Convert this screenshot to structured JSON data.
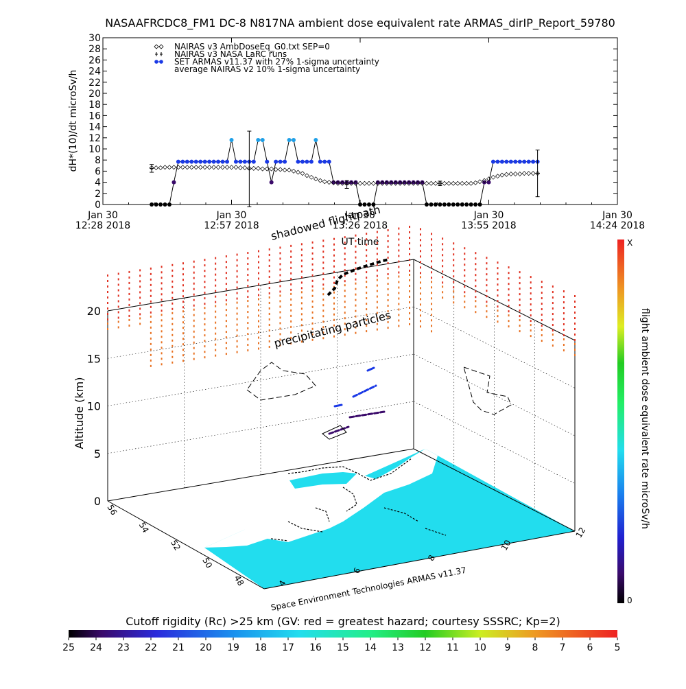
{
  "title": "NASAAFRCDC8_FM1 DC-8   N817NA ambient dose equivalent rate ARMAS_dirIP_Report_59780",
  "chart_data": [
    {
      "type": "line",
      "ylabel": "dH*(10)/dt microSv/h",
      "xlabel": "UT time",
      "ylim": [
        0,
        30
      ],
      "yticks": [
        "0",
        "2",
        "4",
        "6",
        "8",
        "10",
        "12",
        "14",
        "16",
        "18",
        "20",
        "22",
        "24",
        "26",
        "28",
        "30"
      ],
      "xlim": [
        0,
        116
      ],
      "xticks": [
        {
          "x": 0,
          "line1": "Jan 30",
          "line2": "12:28 2018"
        },
        {
          "x": 29,
          "line1": "Jan 30",
          "line2": "12:57 2018"
        },
        {
          "x": 58,
          "line1": "Jan 30",
          "line2": "13:26 2018"
        },
        {
          "x": 87,
          "line1": "Jan 30",
          "line2": "13:55 2018"
        },
        {
          "x": 116,
          "line1": "Jan 30",
          "line2": "14:24 2018"
        }
      ],
      "legend_position": "top-left",
      "legend": [
        {
          "symbol": "diamond",
          "label": "NAIRAS v3 AmbDoseEq_G0.txt SEP=0"
        },
        {
          "symbol": "plus",
          "label": "NAIRAS v3 NASA LaRC runs"
        },
        {
          "symbol": "dot",
          "label": "SET ARMAS v11.37 with 27% 1-sigma uncertainty"
        },
        {
          "symbol": "none",
          "label": "average NAIRAS v2 10% 1-sigma uncertainty"
        }
      ],
      "series": [
        {
          "name": "SET ARMAS v11.37 with 27% 1-sigma uncertainty",
          "x": [
            11,
            12,
            13,
            14,
            15,
            16,
            17,
            18,
            19,
            20,
            21,
            22,
            23,
            24,
            25,
            26,
            27,
            28,
            29,
            30,
            31,
            32,
            33,
            34,
            35,
            36,
            37,
            38,
            39,
            40,
            41,
            42,
            43,
            44,
            45,
            46,
            47,
            48,
            49,
            50,
            51,
            52,
            53,
            54,
            55,
            56,
            57,
            58,
            59,
            60,
            61,
            62,
            63,
            64,
            65,
            66,
            67,
            68,
            69,
            70,
            71,
            72,
            73,
            74,
            75,
            76,
            77,
            78,
            79,
            80,
            81,
            82,
            83,
            84,
            85,
            86,
            87,
            88,
            89,
            90,
            91,
            92,
            93,
            94,
            95,
            96,
            97,
            98
          ],
          "y": [
            0,
            0,
            0,
            0,
            0,
            4,
            7.7,
            7.7,
            7.7,
            7.7,
            7.7,
            7.7,
            7.7,
            7.7,
            7.7,
            7.7,
            7.7,
            7.7,
            11.6,
            7.7,
            7.7,
            7.7,
            7.7,
            7.7,
            11.6,
            11.6,
            7.7,
            4,
            7.7,
            7.7,
            7.7,
            11.6,
            11.6,
            7.7,
            7.7,
            7.7,
            7.7,
            11.6,
            7.7,
            7.7,
            7.7,
            4,
            4,
            4,
            4,
            4,
            4,
            0,
            0,
            0,
            0,
            4,
            4,
            4,
            4,
            4,
            4,
            4,
            4,
            4,
            4,
            4,
            0,
            0,
            0,
            0,
            0,
            0,
            0,
            0,
            0,
            0,
            0,
            0,
            0,
            4,
            4,
            7.7,
            7.7,
            7.7,
            7.7,
            7.7,
            7.7,
            7.7,
            7.7,
            7.7,
            7.7,
            7.7
          ]
        },
        {
          "name": "NAIRAS v3 AmbDoseEq_G0.txt SEP=0",
          "x": [
            11,
            12,
            13,
            14,
            15,
            16,
            17,
            18,
            19,
            20,
            21,
            22,
            23,
            24,
            25,
            26,
            27,
            28,
            29,
            30,
            31,
            32,
            33,
            34,
            35,
            36,
            37,
            38,
            39,
            40,
            41,
            42,
            43,
            44,
            45,
            46,
            47,
            48,
            49,
            50,
            51,
            52,
            53,
            54,
            55,
            56,
            57,
            58,
            59,
            60,
            61,
            62,
            63,
            64,
            65,
            66,
            67,
            68,
            69,
            70,
            71,
            72,
            73,
            74,
            75,
            76,
            77,
            78,
            79,
            80,
            81,
            82,
            83,
            84,
            85,
            86,
            87,
            88,
            89,
            90,
            91,
            92,
            93,
            94,
            95,
            96,
            97,
            98
          ],
          "y": [
            6.6,
            6.6,
            6.6,
            6.7,
            6.7,
            6.7,
            6.7,
            6.7,
            6.7,
            6.7,
            6.7,
            6.7,
            6.7,
            6.7,
            6.7,
            6.7,
            6.7,
            6.7,
            6.7,
            6.7,
            6.6,
            6.6,
            6.5,
            6.5,
            6.5,
            6.4,
            6.4,
            6.4,
            6.3,
            6.3,
            6.2,
            6.2,
            6.0,
            5.8,
            5.6,
            5.2,
            4.9,
            4.6,
            4.3,
            4.1,
            4.0,
            3.9,
            3.8,
            3.8,
            3.8,
            3.8,
            3.8,
            3.8,
            3.8,
            3.8,
            3.8,
            3.8,
            3.8,
            3.8,
            3.8,
            3.8,
            3.8,
            3.8,
            3.8,
            3.8,
            3.8,
            3.8,
            3.8,
            3.8,
            3.8,
            3.8,
            3.8,
            3.8,
            3.8,
            3.8,
            3.8,
            3.8,
            3.8,
            3.9,
            4.1,
            4.3,
            4.6,
            4.9,
            5.1,
            5.3,
            5.4,
            5.5,
            5.5,
            5.5,
            5.6,
            5.6,
            5.6,
            5.6
          ]
        },
        {
          "name": "NAIRAS v3 NASA LaRC runs",
          "x": [
            11,
            33,
            55,
            76,
            98
          ],
          "y": [
            6.5,
            6.4,
            3.6,
            3.8,
            5.6
          ],
          "err": [
            0.7,
            6.8,
            0.7,
            0.4,
            4.2
          ]
        }
      ]
    },
    {
      "type": "heatmap",
      "ylabel": "Altitude (km)",
      "zticks": [
        "0",
        "5",
        "10",
        "15",
        "20"
      ],
      "lat_ticks": [
        "48",
        "50",
        "52",
        "54",
        "56"
      ],
      "lon_ticks": [
        "4",
        "6",
        "8",
        "10",
        "12"
      ],
      "colorbar_label": "flight ambient dose equivalent rate microSv/h",
      "colorbar_top": "X",
      "colorbar_bottom": "0"
    },
    {
      "type": "heatmap",
      "title": "Cutoff rigidity (Rc) >25 km (GV: red = greatest hazard; courtesy SSSRC; Kp=2)",
      "ticks": [
        "25",
        "24",
        "23",
        "22",
        "21",
        "20",
        "19",
        "18",
        "17",
        "16",
        "15",
        "14",
        "13",
        "12",
        "11",
        "10",
        "9",
        "8",
        "7",
        "6",
        "5"
      ]
    }
  ],
  "annotations": {
    "shadowed_flightpath": "shadowed flightpath",
    "precipitating_particles": "precipitating particles",
    "credit": "Space Environment Technologies ARMAS v11.37"
  },
  "colors": {
    "armas_marker": "#1a39e6",
    "armas_high": "#1ea0e8",
    "armas_low": "#3a0a6a",
    "ocean": "#22ddee",
    "flightpath_red": "#e03020",
    "flightpath_orange": "#e87020"
  }
}
